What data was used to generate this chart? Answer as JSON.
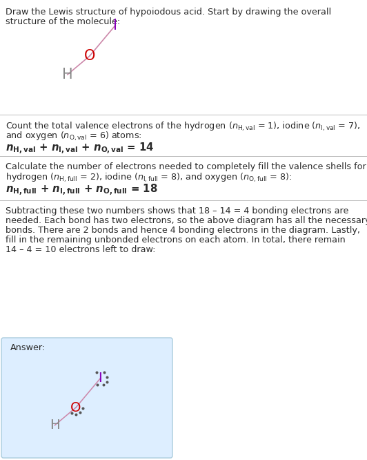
{
  "title_line1": "Draw the Lewis structure of hypoiodous acid. Start by drawing the overall",
  "title_line2": "structure of the molecule:",
  "s1_line1": "Count the total valence electrons of the hydrogen (",
  "s1_line2": "and oxygen (",
  "s2_line1": "Calculate the number of electrons needed to completely fill the valence shells for",
  "s2_line2": "hydrogen (",
  "s3_lines": [
    "Subtracting these two numbers shows that 18 – 14 = 4 bonding electrons are",
    "needed. Each bond has two electrons, so the above diagram has all the necessary",
    "bonds. There are 2 bonds and hence 4 bonding electrons in the diagram. Lastly,",
    "fill in the remaining unbonded electrons on each atom. In total, there remain",
    "14 – 4 = 10 electrons left to draw:"
  ],
  "answer_label": "Answer:",
  "bg_color": "#ffffff",
  "answer_bg_color": "#ddeeff",
  "text_color": "#2a2a2a",
  "H_color": "#888888",
  "O_color": "#cc0000",
  "I_color": "#8800bb",
  "bond_color": "#cc88aa",
  "dot_color": "#555555",
  "divider_color": "#bbbbbb",
  "answer_border_color": "#aaccdd"
}
